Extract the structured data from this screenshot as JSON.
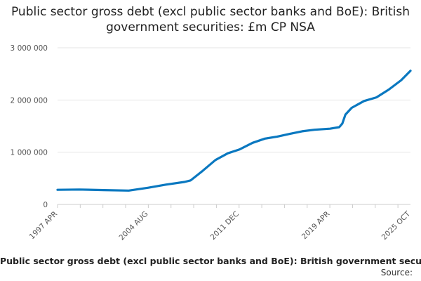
{
  "colors": {
    "line": "#0a78c0",
    "grid": "#e6e6e6",
    "axis": "#cccccc"
  },
  "caption": "Public sector gross debt (excl public sector banks and BoE): British government securities: £m CP NSA",
  "source_label": "Source:",
  "chart_data": {
    "type": "line",
    "title": "Public sector gross debt (excl public sector banks and BoE): British government securities: £m CP NSA",
    "xlabel": "",
    "ylabel": "",
    "ylim": [
      0,
      3000000
    ],
    "yticks": [
      0,
      1000000,
      2000000,
      3000000
    ],
    "ytick_labels": [
      "0",
      "1 000 000",
      "2 000 000",
      "3 000 000"
    ],
    "xticks": [
      1997.25,
      2004.58,
      2011.92,
      2019.25,
      2025.75
    ],
    "xtick_labels": [
      "1997 APR",
      "2004 AUG",
      "2011 DEC",
      "2019 APR",
      "2025 OCT"
    ],
    "grid": true,
    "legend": "none",
    "series": [
      {
        "x": [
          1997.25,
          1999.0,
          2001.0,
          2003.0,
          2004.58,
          2006.0,
          2007.5,
          2008.0,
          2009.0,
          2010.0,
          2011.0,
          2011.92,
          2013.0,
          2014.0,
          2015.0,
          2016.0,
          2017.0,
          2018.0,
          2019.25,
          2020.0,
          2020.25,
          2020.5,
          2021.0,
          2022.0,
          2023.0,
          2024.0,
          2025.0,
          2025.75
        ],
        "y": [
          280000,
          285000,
          275000,
          265000,
          320000,
          380000,
          430000,
          460000,
          650000,
          850000,
          980000,
          1050000,
          1180000,
          1260000,
          1300000,
          1350000,
          1400000,
          1430000,
          1450000,
          1480000,
          1550000,
          1720000,
          1850000,
          1980000,
          2050000,
          2200000,
          2380000,
          2560000
        ]
      }
    ]
  }
}
